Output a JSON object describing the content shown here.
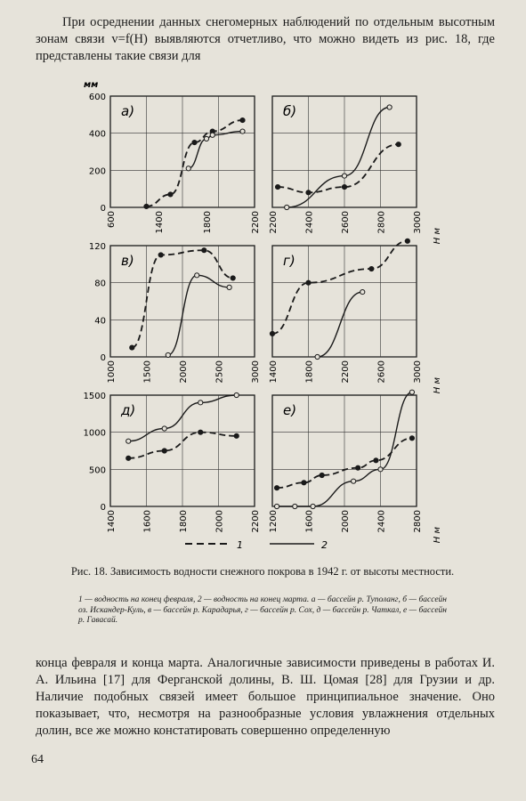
{
  "text": {
    "para_top": "При осреднении данных снегомерных наблюдений по отдельным высотным зонам связи v=f(H) выявляются отчетливо, что можно видеть из рис. 18, где представлены такие связи для",
    "caption_title": "Рис. 18. Зависимость водности снежного покрова в 1942 г. от высоты местности.",
    "caption_legend": "1 — водность на конец февраля, 2 — водность на конец марта. а — бассейн р. Туполанг, б — бассейн оз. Искандер-Куль, в — бассейн р. Карадарья, г — бассейн р. Сох, д — бассейн р. Чаткал, е — бассейн р. Гавасай.",
    "para_bottom": "конца февраля и конца марта. Аналогичные зависимости приведены в работах И. А. Ильина [17] для Ферганской долины, В. Ш. Цомая [28] для Грузии и др. Наличие подобных связей имеет большое принципиальное значение. Оно показывает, что, несмотря на разнообразные условия увлажнения отдельных долин, все же можно констатировать совершенно определенную",
    "page_number": "64"
  },
  "figure": {
    "unit_y": "мм",
    "unit_x": "Н м",
    "legend": [
      {
        "key": "1",
        "style": "dashed"
      },
      {
        "key": "2",
        "style": "solid"
      }
    ]
  },
  "chart_data": [
    {
      "type": "line",
      "panel": "а)",
      "xticks": [
        600,
        1400,
        1800,
        2200
      ],
      "xlim": [
        1000,
        2200
      ],
      "yticks": [
        0,
        200,
        400,
        600
      ],
      "ylim": [
        0,
        600
      ],
      "series": [
        {
          "name": "1",
          "x": [
            1300,
            1500,
            1700,
            1850,
            2100
          ],
          "y": [
            5,
            70,
            350,
            410,
            470
          ]
        },
        {
          "name": "2",
          "x": [
            1650,
            1800,
            1850,
            2100
          ],
          "y": [
            210,
            370,
            390,
            410
          ]
        }
      ]
    },
    {
      "type": "line",
      "panel": "б)",
      "xticks": [
        2200,
        2400,
        2600,
        2800,
        3000
      ],
      "xlim": [
        2200,
        3000
      ],
      "ylim": [
        0,
        600
      ],
      "series": [
        {
          "name": "1",
          "x": [
            2230,
            2400,
            2600,
            2900
          ],
          "y": [
            110,
            80,
            110,
            340
          ]
        },
        {
          "name": "2",
          "x": [
            2280,
            2600,
            2850
          ],
          "y": [
            0,
            170,
            540
          ]
        }
      ]
    },
    {
      "type": "line",
      "panel": "в)",
      "xticks": [
        1000,
        1500,
        2000,
        2500,
        3000
      ],
      "xlim": [
        1000,
        3000
      ],
      "yticks": [
        0,
        40,
        80,
        120
      ],
      "ylim": [
        0,
        120
      ],
      "series": [
        {
          "name": "1",
          "x": [
            1300,
            1700,
            2300,
            2700
          ],
          "y": [
            10,
            110,
            115,
            85
          ]
        },
        {
          "name": "2",
          "x": [
            1800,
            2200,
            2650
          ],
          "y": [
            2,
            88,
            75
          ]
        }
      ]
    },
    {
      "type": "line",
      "panel": "г)",
      "xticks": [
        1400,
        1800,
        2200,
        2600,
        3000
      ],
      "xlim": [
        1400,
        3000
      ],
      "ylim": [
        0,
        120
      ],
      "series": [
        {
          "name": "1",
          "x": [
            1400,
            1800,
            2500,
            2900
          ],
          "y": [
            25,
            80,
            95,
            125
          ]
        },
        {
          "name": "2",
          "x": [
            1900,
            2400
          ],
          "y": [
            0,
            70
          ]
        }
      ]
    },
    {
      "type": "line",
      "panel": "д)",
      "xticks": [
        1400,
        1600,
        1800,
        2000,
        2200
      ],
      "xlim": [
        1400,
        2200
      ],
      "yticks": [
        0,
        500,
        1000,
        1500
      ],
      "ylim": [
        0,
        1500
      ],
      "series": [
        {
          "name": "1",
          "x": [
            1500,
            1700,
            1900,
            2100
          ],
          "y": [
            650,
            750,
            1000,
            950
          ]
        },
        {
          "name": "2",
          "x": [
            1500,
            1700,
            1900,
            2100
          ],
          "y": [
            880,
            1050,
            1400,
            1500
          ]
        }
      ]
    },
    {
      "type": "line",
      "panel": "е)",
      "xticks": [
        1200,
        1600,
        2000,
        2400,
        2800
      ],
      "xlim": [
        1200,
        2800
      ],
      "ylim": [
        0,
        1500
      ],
      "series": [
        {
          "name": "1",
          "x": [
            1250,
            1550,
            1750,
            2150,
            2350,
            2750
          ],
          "y": [
            250,
            320,
            420,
            520,
            620,
            920
          ]
        },
        {
          "name": "2",
          "x": [
            1250,
            1450,
            1650,
            2100,
            2400,
            2750
          ],
          "y": [
            0,
            0,
            0,
            340,
            500,
            1540
          ]
        }
      ]
    }
  ]
}
